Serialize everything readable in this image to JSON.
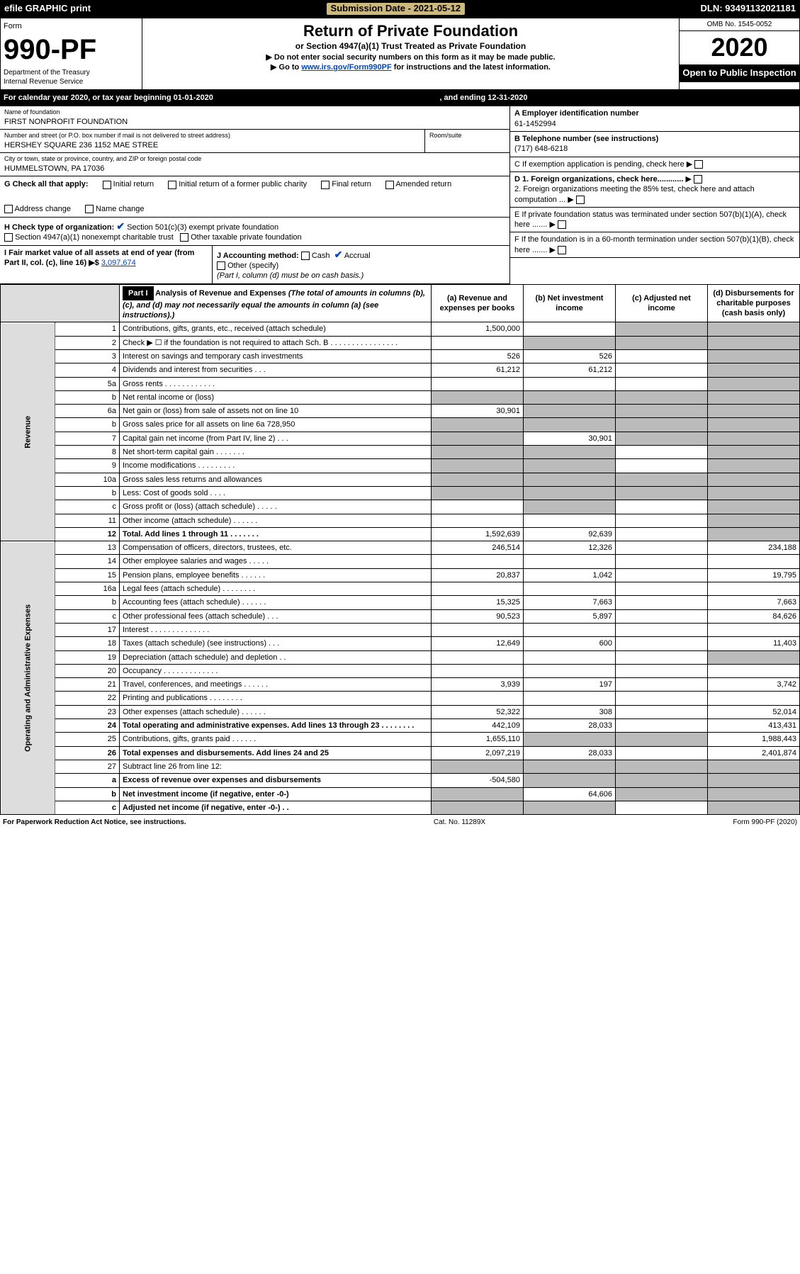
{
  "topbar": {
    "efile": "efile GRAPHIC print",
    "sub_label": "Submission Date - 2021-05-12",
    "dln": "DLN: 93491132021181"
  },
  "header": {
    "form_label": "Form",
    "form_num": "990-PF",
    "dept": "Department of the Treasury",
    "irs": "Internal Revenue Service",
    "title": "Return of Private Foundation",
    "subtitle": "or Section 4947(a)(1) Trust Treated as Private Foundation",
    "instr1": "▶ Do not enter social security numbers on this form as it may be made public.",
    "instr2_pre": "▶ Go to ",
    "instr2_link": "www.irs.gov/Form990PF",
    "instr2_post": " for instructions and the latest information.",
    "omb": "OMB No. 1545-0052",
    "year": "2020",
    "open": "Open to Public Inspection"
  },
  "calendar": {
    "left": "For calendar year 2020, or tax year beginning 01-01-2020",
    "right": ", and ending 12-31-2020"
  },
  "info": {
    "name_lbl": "Name of foundation",
    "name": "FIRST NONPROFIT FOUNDATION",
    "addr_lbl": "Number and street (or P.O. box number if mail is not delivered to street address)",
    "addr": "HERSHEY SQUARE 236 1152 MAE STREE",
    "room_lbl": "Room/suite",
    "city_lbl": "City or town, state or province, country, and ZIP or foreign postal code",
    "city": "HUMMELSTOWN, PA  17036",
    "a_lbl": "A Employer identification number",
    "a_val": "61-1452994",
    "b_lbl": "B Telephone number (see instructions)",
    "b_val": "(717) 648-6218",
    "c_lbl": "C If exemption application is pending, check here",
    "d1": "D 1. Foreign organizations, check here............",
    "d2": "2. Foreign organizations meeting the 85% test, check here and attach computation ...",
    "e": "E  If private foundation status was terminated under section 507(b)(1)(A), check here .......",
    "f": "F  If the foundation is in a 60-month termination under section 507(b)(1)(B), check here .......",
    "g_lbl": "G Check all that apply:",
    "g_opts": [
      "Initial return",
      "Initial return of a former public charity",
      "Final return",
      "Amended return",
      "Address change",
      "Name change"
    ],
    "h_lbl": "H Check type of organization:",
    "h_1": "Section 501(c)(3) exempt private foundation",
    "h_2": "Section 4947(a)(1) nonexempt charitable trust",
    "h_3": "Other taxable private foundation",
    "i_lbl": "I Fair market value of all assets at end of year (from Part II, col. (c), line 16) ▶$",
    "i_val": "3,097,674",
    "j_lbl": "J Accounting method:",
    "j_cash": "Cash",
    "j_accrual": "Accrual",
    "j_other": "Other (specify)",
    "j_note": "(Part I, column (d) must be on cash basis.)"
  },
  "part1": {
    "label": "Part I",
    "title": "Analysis of Revenue and Expenses",
    "title_note": "(The total of amounts in columns (b), (c), and (d) may not necessarily equal the amounts in column (a) (see instructions).)",
    "col_a": "(a) Revenue and expenses per books",
    "col_b": "(b) Net investment income",
    "col_c": "(c) Adjusted net income",
    "col_d": "(d) Disbursements for charitable purposes (cash basis only)"
  },
  "side": {
    "rev": "Revenue",
    "exp": "Operating and Administrative Expenses"
  },
  "rows": [
    {
      "n": "1",
      "t": "Contributions, gifts, grants, etc., received (attach schedule)",
      "a": "1,500,000",
      "b": "",
      "c": "shade",
      "d": "shade"
    },
    {
      "n": "2",
      "t": "Check ▶ ☐ if the foundation is not required to attach Sch. B  . . . . . . . . . . . . . . . .",
      "a": "",
      "b": "shade",
      "c": "shade",
      "d": "shade"
    },
    {
      "n": "3",
      "t": "Interest on savings and temporary cash investments",
      "a": "526",
      "b": "526",
      "c": "",
      "d": "shade"
    },
    {
      "n": "4",
      "t": "Dividends and interest from securities  . . .",
      "a": "61,212",
      "b": "61,212",
      "c": "",
      "d": "shade"
    },
    {
      "n": "5a",
      "t": "Gross rents  . . . . . . . . . . . .",
      "a": "",
      "b": "",
      "c": "",
      "d": "shade"
    },
    {
      "n": "b",
      "t": "Net rental income or (loss)",
      "a": "shade",
      "b": "shade",
      "c": "shade",
      "d": "shade"
    },
    {
      "n": "6a",
      "t": "Net gain or (loss) from sale of assets not on line 10",
      "a": "30,901",
      "b": "shade",
      "c": "shade",
      "d": "shade"
    },
    {
      "n": "b",
      "t": "Gross sales price for all assets on line 6a          728,950",
      "a": "shade",
      "b": "shade",
      "c": "shade",
      "d": "shade"
    },
    {
      "n": "7",
      "t": "Capital gain net income (from Part IV, line 2)  . . .",
      "a": "shade",
      "b": "30,901",
      "c": "shade",
      "d": "shade"
    },
    {
      "n": "8",
      "t": "Net short-term capital gain  . . . . . . .",
      "a": "shade",
      "b": "shade",
      "c": "",
      "d": "shade"
    },
    {
      "n": "9",
      "t": "Income modifications . . . . . . . . .",
      "a": "shade",
      "b": "shade",
      "c": "",
      "d": "shade"
    },
    {
      "n": "10a",
      "t": "Gross sales less returns and allowances",
      "a": "shade",
      "b": "shade",
      "c": "shade",
      "d": "shade"
    },
    {
      "n": "b",
      "t": "Less: Cost of goods sold  . . . .",
      "a": "shade",
      "b": "shade",
      "c": "shade",
      "d": "shade"
    },
    {
      "n": "c",
      "t": "Gross profit or (loss) (attach schedule)  . . . . .",
      "a": "",
      "b": "shade",
      "c": "",
      "d": "shade"
    },
    {
      "n": "11",
      "t": "Other income (attach schedule)  . . . . . .",
      "a": "",
      "b": "",
      "c": "",
      "d": "shade"
    },
    {
      "n": "12",
      "t": "Total. Add lines 1 through 11  . . . . . . .",
      "a": "1,592,639",
      "b": "92,639",
      "c": "",
      "d": "shade",
      "bold": true
    },
    {
      "n": "13",
      "t": "Compensation of officers, directors, trustees, etc.",
      "a": "246,514",
      "b": "12,326",
      "c": "",
      "d": "234,188"
    },
    {
      "n": "14",
      "t": "Other employee salaries and wages  . . . . .",
      "a": "",
      "b": "",
      "c": "",
      "d": ""
    },
    {
      "n": "15",
      "t": "Pension plans, employee benefits . . . . . .",
      "a": "20,837",
      "b": "1,042",
      "c": "",
      "d": "19,795"
    },
    {
      "n": "16a",
      "t": "Legal fees (attach schedule) . . . . . . . .",
      "a": "",
      "b": "",
      "c": "",
      "d": ""
    },
    {
      "n": "b",
      "t": "Accounting fees (attach schedule) . . . . . .",
      "a": "15,325",
      "b": "7,663",
      "c": "",
      "d": "7,663"
    },
    {
      "n": "c",
      "t": "Other professional fees (attach schedule)  . . .",
      "a": "90,523",
      "b": "5,897",
      "c": "",
      "d": "84,626"
    },
    {
      "n": "17",
      "t": "Interest . . . . . . . . . . . . . .",
      "a": "",
      "b": "",
      "c": "",
      "d": ""
    },
    {
      "n": "18",
      "t": "Taxes (attach schedule) (see instructions)  . . .",
      "a": "12,649",
      "b": "600",
      "c": "",
      "d": "11,403"
    },
    {
      "n": "19",
      "t": "Depreciation (attach schedule) and depletion  . .",
      "a": "",
      "b": "",
      "c": "",
      "d": "shade"
    },
    {
      "n": "20",
      "t": "Occupancy . . . . . . . . . . . . .",
      "a": "",
      "b": "",
      "c": "",
      "d": ""
    },
    {
      "n": "21",
      "t": "Travel, conferences, and meetings . . . . . .",
      "a": "3,939",
      "b": "197",
      "c": "",
      "d": "3,742"
    },
    {
      "n": "22",
      "t": "Printing and publications . . . . . . . .",
      "a": "",
      "b": "",
      "c": "",
      "d": ""
    },
    {
      "n": "23",
      "t": "Other expenses (attach schedule) . . . . . .",
      "a": "52,322",
      "b": "308",
      "c": "",
      "d": "52,014"
    },
    {
      "n": "24",
      "t": "Total operating and administrative expenses. Add lines 13 through 23  . . . . . . . .",
      "a": "442,109",
      "b": "28,033",
      "c": "",
      "d": "413,431",
      "bold": true
    },
    {
      "n": "25",
      "t": "Contributions, gifts, grants paid  . . . . . .",
      "a": "1,655,110",
      "b": "shade",
      "c": "shade",
      "d": "1,988,443"
    },
    {
      "n": "26",
      "t": "Total expenses and disbursements. Add lines 24 and 25",
      "a": "2,097,219",
      "b": "28,033",
      "c": "",
      "d": "2,401,874",
      "bold": true
    },
    {
      "n": "27",
      "t": "Subtract line 26 from line 12:",
      "a": "shade",
      "b": "shade",
      "c": "shade",
      "d": "shade"
    },
    {
      "n": "a",
      "t": "Excess of revenue over expenses and disbursements",
      "a": "-504,580",
      "b": "shade",
      "c": "shade",
      "d": "shade",
      "bold": true
    },
    {
      "n": "b",
      "t": "Net investment income (if negative, enter -0-)",
      "a": "shade",
      "b": "64,606",
      "c": "shade",
      "d": "shade",
      "bold": true
    },
    {
      "n": "c",
      "t": "Adjusted net income (if negative, enter -0-)  . .",
      "a": "shade",
      "b": "shade",
      "c": "",
      "d": "shade",
      "bold": true
    }
  ],
  "footer": {
    "left": "For Paperwork Reduction Act Notice, see instructions.",
    "center": "Cat. No. 11289X",
    "right": "Form 990-PF (2020)"
  },
  "colors": {
    "shade": "#bebebe",
    "link": "#0047bb",
    "yellow": "#cdb87d"
  }
}
